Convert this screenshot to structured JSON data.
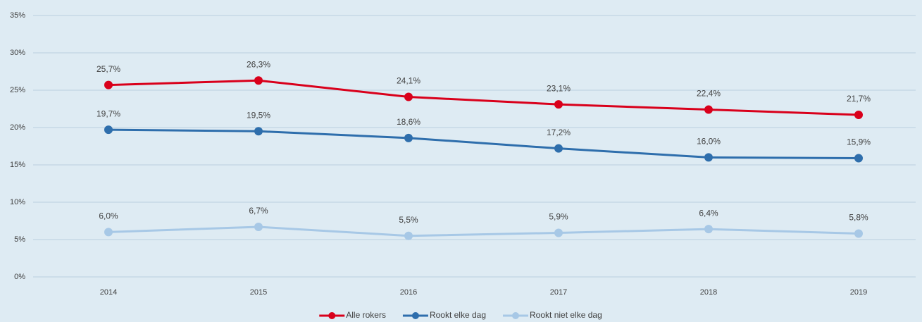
{
  "chart_data": {
    "type": "line",
    "categories": [
      "2014",
      "2015",
      "2016",
      "2017",
      "2018",
      "2019"
    ],
    "series": [
      {
        "name": "Alle rokers",
        "color": "#d9001b",
        "values": [
          25.7,
          26.3,
          24.1,
          23.1,
          22.4,
          21.7
        ],
        "value_labels": [
          "25,7%",
          "26,3%",
          "24,1%",
          "23,1%",
          "22,4%",
          "21,7%"
        ]
      },
      {
        "name": "Rookt elke dag",
        "color": "#2e6eac",
        "values": [
          19.7,
          19.5,
          18.6,
          17.2,
          16.0,
          15.9
        ],
        "value_labels": [
          "19,7%",
          "19,5%",
          "18,6%",
          "17,2%",
          "16,0%",
          "15,9%"
        ]
      },
      {
        "name": "Rookt niet elke dag",
        "color": "#a7c8e6",
        "values": [
          6.0,
          6.7,
          5.5,
          5.9,
          6.4,
          5.8
        ],
        "value_labels": [
          "6,0%",
          "6,7%",
          "5,5%",
          "5,9%",
          "6,4%",
          "5,8%"
        ]
      }
    ],
    "ylim": [
      0,
      35
    ],
    "yticks": [
      {
        "value": 0,
        "label": "0%"
      },
      {
        "value": 5,
        "label": "5%"
      },
      {
        "value": 10,
        "label": "10%"
      },
      {
        "value": 15,
        "label": "15%"
      },
      {
        "value": 20,
        "label": "20%"
      },
      {
        "value": 25,
        "label": "25%"
      },
      {
        "value": 30,
        "label": "30%"
      },
      {
        "value": 35,
        "label": "35%"
      }
    ],
    "grid": true,
    "legend": "bottom"
  }
}
